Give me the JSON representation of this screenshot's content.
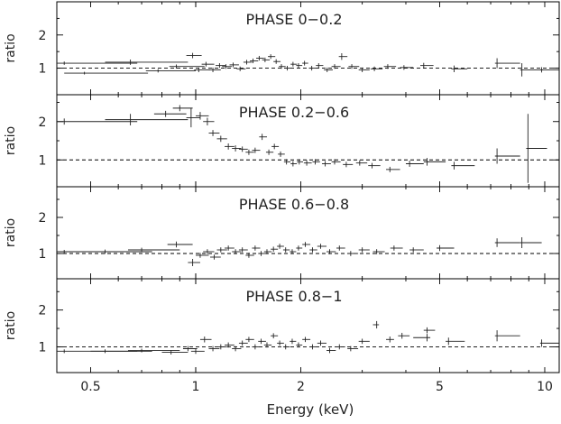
{
  "chart_data": {
    "type": "scatter",
    "xlabel": "Energy (keV)",
    "x_scale": "log",
    "xlim": [
      0.4,
      11
    ],
    "x_ticks": [
      0.5,
      1,
      2,
      5,
      10
    ],
    "x_tick_labels": [
      "0.5",
      "1",
      "2",
      "5",
      "10"
    ],
    "reference_line": 1,
    "panels": [
      {
        "title": "PHASE 0−0.2",
        "ylabel": "ratio",
        "ylim": [
          0.2,
          3.0
        ],
        "y_ticks": [
          1,
          2
        ],
        "y_tick_labels": [
          "1",
          "2"
        ],
        "points": [
          [
            0.42,
            1.15,
            0.02,
            0.26,
            0.05
          ],
          [
            0.65,
            1.18,
            0.1,
            0.3,
            0.08
          ],
          [
            0.48,
            0.85,
            0.06,
            0.25,
            0.04
          ],
          [
            0.78,
            0.92,
            0.06,
            0.22,
            0.05
          ],
          [
            0.88,
            1.05,
            0.04,
            0.18,
            0.06
          ],
          [
            0.98,
            1.38,
            0.04,
            0.06,
            0.08
          ],
          [
            1.02,
            0.95,
            0.03,
            0.08,
            0.07
          ],
          [
            1.07,
            1.12,
            0.03,
            0.06,
            0.07
          ],
          [
            1.12,
            0.95,
            0.03,
            0.06,
            0.07
          ],
          [
            1.17,
            1.08,
            0.03,
            0.05,
            0.07
          ],
          [
            1.22,
            1.05,
            0.03,
            0.05,
            0.07
          ],
          [
            1.28,
            1.1,
            0.03,
            0.05,
            0.07
          ],
          [
            1.34,
            0.98,
            0.03,
            0.05,
            0.07
          ],
          [
            1.4,
            1.18,
            0.03,
            0.05,
            0.07
          ],
          [
            1.46,
            1.22,
            0.03,
            0.05,
            0.07
          ],
          [
            1.52,
            1.3,
            0.03,
            0.05,
            0.07
          ],
          [
            1.58,
            1.25,
            0.03,
            0.05,
            0.07
          ],
          [
            1.64,
            1.35,
            0.03,
            0.05,
            0.07
          ],
          [
            1.7,
            1.2,
            0.03,
            0.05,
            0.07
          ],
          [
            1.76,
            1.05,
            0.03,
            0.05,
            0.07
          ],
          [
            1.83,
            1.0,
            0.03,
            0.05,
            0.07
          ],
          [
            1.9,
            1.12,
            0.03,
            0.05,
            0.07
          ],
          [
            1.97,
            1.08,
            0.03,
            0.05,
            0.07
          ],
          [
            2.05,
            1.15,
            0.03,
            0.05,
            0.07
          ],
          [
            2.15,
            1.0,
            0.04,
            0.07,
            0.07
          ],
          [
            2.25,
            1.08,
            0.04,
            0.07,
            0.07
          ],
          [
            2.38,
            0.95,
            0.05,
            0.09,
            0.07
          ],
          [
            2.5,
            1.05,
            0.05,
            0.1,
            0.07
          ],
          [
            2.62,
            1.35,
            0.05,
            0.1,
            0.1
          ],
          [
            2.8,
            1.05,
            0.06,
            0.14,
            0.07
          ],
          [
            3.0,
            0.95,
            0.07,
            0.15,
            0.07
          ],
          [
            3.25,
            0.98,
            0.08,
            0.18,
            0.07
          ],
          [
            3.55,
            1.05,
            0.09,
            0.2,
            0.07
          ],
          [
            3.95,
            1.02,
            0.1,
            0.25,
            0.07
          ],
          [
            4.5,
            1.08,
            0.1,
            0.3,
            0.08
          ],
          [
            5.5,
            0.98,
            0.1,
            0.5,
            0.1
          ],
          [
            7.3,
            1.15,
            0.1,
            1.2,
            0.15
          ],
          [
            8.6,
            0.95,
            0.1,
            1.3,
            0.2
          ],
          [
            9.8,
            0.95,
            0.1,
            1.2,
            0.08
          ]
        ]
      },
      {
        "title": "PHASE 0.2−0.6",
        "ylabel": "ratio",
        "ylim": [
          0.3,
          2.7
        ],
        "y_ticks": [
          1,
          2
        ],
        "y_tick_labels": [
          "1",
          "2"
        ],
        "points": [
          [
            0.42,
            2.0,
            0.02,
            0.26,
            0.08
          ],
          [
            0.65,
            2.05,
            0.1,
            0.3,
            0.15
          ],
          [
            0.82,
            2.2,
            0.06,
            0.12,
            0.08
          ],
          [
            0.9,
            2.35,
            0.04,
            0.08,
            0.08
          ],
          [
            0.97,
            2.1,
            0.03,
            0.06,
            0.25
          ],
          [
            1.03,
            2.15,
            0.03,
            0.06,
            0.1
          ],
          [
            1.08,
            2.0,
            0.03,
            0.05,
            0.1
          ],
          [
            1.12,
            1.7,
            0.03,
            0.05,
            0.08
          ],
          [
            1.18,
            1.55,
            0.03,
            0.05,
            0.08
          ],
          [
            1.24,
            1.35,
            0.03,
            0.05,
            0.08
          ],
          [
            1.3,
            1.3,
            0.03,
            0.05,
            0.08
          ],
          [
            1.36,
            1.28,
            0.03,
            0.05,
            0.07
          ],
          [
            1.42,
            1.2,
            0.03,
            0.05,
            0.07
          ],
          [
            1.48,
            1.25,
            0.03,
            0.05,
            0.07
          ],
          [
            1.55,
            1.6,
            0.03,
            0.05,
            0.08
          ],
          [
            1.62,
            1.2,
            0.03,
            0.05,
            0.07
          ],
          [
            1.68,
            1.35,
            0.03,
            0.05,
            0.07
          ],
          [
            1.75,
            1.15,
            0.03,
            0.05,
            0.07
          ],
          [
            1.82,
            0.95,
            0.03,
            0.05,
            0.07
          ],
          [
            1.9,
            0.9,
            0.03,
            0.05,
            0.07
          ],
          [
            1.98,
            0.95,
            0.03,
            0.05,
            0.07
          ],
          [
            2.08,
            0.92,
            0.04,
            0.07,
            0.07
          ],
          [
            2.2,
            0.95,
            0.04,
            0.07,
            0.07
          ],
          [
            2.35,
            0.9,
            0.05,
            0.09,
            0.07
          ],
          [
            2.5,
            0.95,
            0.05,
            0.1,
            0.07
          ],
          [
            2.7,
            0.88,
            0.06,
            0.12,
            0.07
          ],
          [
            2.95,
            0.92,
            0.07,
            0.15,
            0.07
          ],
          [
            3.2,
            0.85,
            0.08,
            0.18,
            0.07
          ],
          [
            3.6,
            0.75,
            0.09,
            0.25,
            0.07
          ],
          [
            4.1,
            0.9,
            0.1,
            0.4,
            0.08
          ],
          [
            4.6,
            0.95,
            0.1,
            0.6,
            0.1
          ],
          [
            5.5,
            0.85,
            0.1,
            0.8,
            0.1
          ],
          [
            7.3,
            1.1,
            0.1,
            1.2,
            0.2
          ],
          [
            8.95,
            1.3,
            0.1,
            1.2,
            0.9
          ]
        ]
      },
      {
        "title": "PHASE 0.6−0.8",
        "ylabel": "ratio",
        "ylim": [
          0.3,
          2.85
        ],
        "y_ticks": [
          1,
          2
        ],
        "y_tick_labels": [
          "1",
          "2"
        ],
        "points": [
          [
            0.42,
            1.05,
            0.02,
            0.26,
            0.05
          ],
          [
            0.55,
            1.05,
            0.05,
            0.2,
            0.06
          ],
          [
            0.7,
            1.1,
            0.06,
            0.2,
            0.06
          ],
          [
            0.88,
            1.25,
            0.05,
            0.1,
            0.08
          ],
          [
            0.98,
            0.75,
            0.03,
            0.05,
            0.1
          ],
          [
            1.03,
            0.95,
            0.03,
            0.06,
            0.07
          ],
          [
            1.08,
            1.05,
            0.03,
            0.05,
            0.07
          ],
          [
            1.13,
            0.9,
            0.03,
            0.05,
            0.07
          ],
          [
            1.18,
            1.1,
            0.03,
            0.05,
            0.07
          ],
          [
            1.24,
            1.15,
            0.03,
            0.05,
            0.07
          ],
          [
            1.3,
            1.05,
            0.03,
            0.05,
            0.07
          ],
          [
            1.36,
            1.1,
            0.03,
            0.05,
            0.07
          ],
          [
            1.42,
            0.95,
            0.03,
            0.05,
            0.07
          ],
          [
            1.48,
            1.15,
            0.03,
            0.05,
            0.07
          ],
          [
            1.54,
            1.0,
            0.03,
            0.05,
            0.07
          ],
          [
            1.6,
            1.05,
            0.03,
            0.05,
            0.07
          ],
          [
            1.67,
            1.12,
            0.03,
            0.05,
            0.07
          ],
          [
            1.74,
            1.2,
            0.03,
            0.05,
            0.07
          ],
          [
            1.81,
            1.1,
            0.03,
            0.05,
            0.07
          ],
          [
            1.89,
            1.05,
            0.03,
            0.05,
            0.07
          ],
          [
            1.97,
            1.15,
            0.03,
            0.05,
            0.07
          ],
          [
            2.06,
            1.25,
            0.04,
            0.07,
            0.07
          ],
          [
            2.16,
            1.1,
            0.04,
            0.07,
            0.07
          ],
          [
            2.28,
            1.2,
            0.05,
            0.09,
            0.07
          ],
          [
            2.42,
            1.05,
            0.05,
            0.1,
            0.07
          ],
          [
            2.58,
            1.15,
            0.05,
            0.1,
            0.07
          ],
          [
            2.78,
            1.0,
            0.06,
            0.14,
            0.07
          ],
          [
            3.0,
            1.1,
            0.07,
            0.15,
            0.07
          ],
          [
            3.3,
            1.05,
            0.08,
            0.18,
            0.07
          ],
          [
            3.7,
            1.15,
            0.09,
            0.22,
            0.07
          ],
          [
            4.2,
            1.1,
            0.1,
            0.3,
            0.07
          ],
          [
            5.0,
            1.15,
            0.1,
            0.5,
            0.08
          ],
          [
            7.3,
            1.3,
            0.1,
            1.2,
            0.12
          ],
          [
            8.6,
            1.3,
            0.1,
            1.2,
            0.15
          ]
        ]
      },
      {
        "title": "PHASE 0.8−1",
        "ylabel": "ratio",
        "ylim": [
          0.3,
          2.85
        ],
        "y_ticks": [
          1,
          2
        ],
        "y_tick_labels": [
          "1",
          "2"
        ],
        "points": [
          [
            0.42,
            0.88,
            0.02,
            0.26,
            0.05
          ],
          [
            0.55,
            0.88,
            0.05,
            0.2,
            0.05
          ],
          [
            0.7,
            0.9,
            0.06,
            0.2,
            0.05
          ],
          [
            0.85,
            0.85,
            0.05,
            0.1,
            0.06
          ],
          [
            0.95,
            0.95,
            0.03,
            0.06,
            0.07
          ],
          [
            1.0,
            0.88,
            0.03,
            0.06,
            0.07
          ],
          [
            1.06,
            1.2,
            0.03,
            0.05,
            0.08
          ],
          [
            1.12,
            0.95,
            0.03,
            0.05,
            0.07
          ],
          [
            1.18,
            1.0,
            0.03,
            0.05,
            0.07
          ],
          [
            1.24,
            1.05,
            0.03,
            0.05,
            0.07
          ],
          [
            1.3,
            0.95,
            0.03,
            0.05,
            0.07
          ],
          [
            1.36,
            1.1,
            0.03,
            0.05,
            0.07
          ],
          [
            1.42,
            1.2,
            0.03,
            0.05,
            0.07
          ],
          [
            1.48,
            1.0,
            0.03,
            0.05,
            0.07
          ],
          [
            1.54,
            1.15,
            0.03,
            0.05,
            0.07
          ],
          [
            1.6,
            1.05,
            0.03,
            0.05,
            0.07
          ],
          [
            1.67,
            1.3,
            0.03,
            0.05,
            0.07
          ],
          [
            1.74,
            1.1,
            0.03,
            0.05,
            0.07
          ],
          [
            1.81,
            1.0,
            0.03,
            0.05,
            0.07
          ],
          [
            1.89,
            1.15,
            0.03,
            0.05,
            0.07
          ],
          [
            1.97,
            1.05,
            0.03,
            0.05,
            0.07
          ],
          [
            2.06,
            1.2,
            0.04,
            0.07,
            0.07
          ],
          [
            2.16,
            1.0,
            0.04,
            0.07,
            0.07
          ],
          [
            2.28,
            1.1,
            0.05,
            0.09,
            0.07
          ],
          [
            2.42,
            0.9,
            0.05,
            0.1,
            0.07
          ],
          [
            2.58,
            1.0,
            0.05,
            0.1,
            0.07
          ],
          [
            2.78,
            0.95,
            0.06,
            0.14,
            0.07
          ],
          [
            3.0,
            1.15,
            0.07,
            0.15,
            0.07
          ],
          [
            3.3,
            1.6,
            0.08,
            0.05,
            0.1
          ],
          [
            3.6,
            1.2,
            0.09,
            0.1,
            0.08
          ],
          [
            3.9,
            1.3,
            0.1,
            0.2,
            0.08
          ],
          [
            4.6,
            1.45,
            0.1,
            0.25,
            0.08
          ],
          [
            4.6,
            1.25,
            0.4,
            0.1,
            0.1
          ],
          [
            5.3,
            1.15,
            0.1,
            0.6,
            0.1
          ],
          [
            7.3,
            1.3,
            0.1,
            1.2,
            0.15
          ],
          [
            9.8,
            1.1,
            0.1,
            1.2,
            0.1
          ]
        ]
      }
    ]
  }
}
